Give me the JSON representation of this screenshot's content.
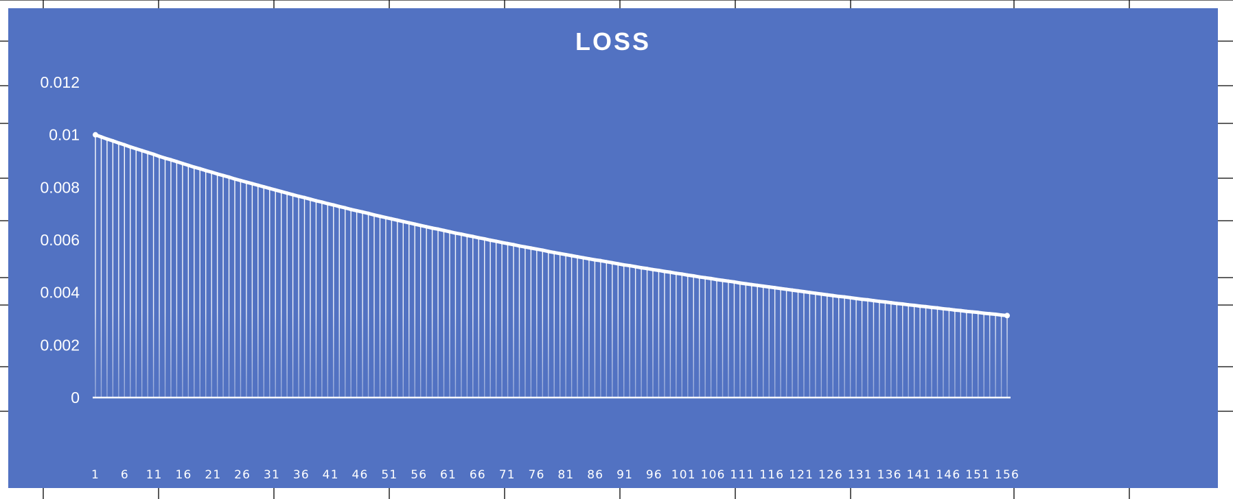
{
  "colors": {
    "background": "#ffffff",
    "gridline": "#000000",
    "chart_fill": "#5272c2",
    "series": "#ffffff"
  },
  "chart_data": {
    "type": "line",
    "title": "LOSS",
    "xlabel": "",
    "ylabel": "",
    "x_tick_labels": [
      "1",
      "6",
      "11",
      "16",
      "21",
      "26",
      "31",
      "36",
      "41",
      "46",
      "51",
      "56",
      "61",
      "66",
      "71",
      "76",
      "81",
      "86",
      "91",
      "96",
      "101",
      "106",
      "111",
      "116",
      "121",
      "126",
      "131",
      "136",
      "141",
      "146",
      "151",
      "156"
    ],
    "y_tick_labels": [
      "0",
      "0.002",
      "0.004",
      "0.006",
      "0.008",
      "0.01",
      "0.012"
    ],
    "ylim": [
      0,
      0.012
    ],
    "x_range": [
      1,
      156
    ],
    "grid": false,
    "legend": "none",
    "drop_lines": true,
    "series": [
      {
        "values": [
          0.01,
          0.00992,
          0.00984,
          0.00977,
          0.00969,
          0.00962,
          0.00954,
          0.00947,
          0.0094,
          0.00933,
          0.00926,
          0.00918,
          0.00911,
          0.00905,
          0.00898,
          0.00891,
          0.00884,
          0.00877,
          0.00871,
          0.00864,
          0.00858,
          0.00851,
          0.00845,
          0.00839,
          0.00832,
          0.00826,
          0.0082,
          0.00814,
          0.00808,
          0.00802,
          0.00796,
          0.0079,
          0.00784,
          0.00778,
          0.00772,
          0.00766,
          0.00761,
          0.00755,
          0.00749,
          0.00744,
          0.00738,
          0.00733,
          0.00727,
          0.00722,
          0.00716,
          0.00711,
          0.00706,
          0.00701,
          0.00695,
          0.0069,
          0.00685,
          0.0068,
          0.00675,
          0.0067,
          0.00665,
          0.0066,
          0.00655,
          0.0065,
          0.00645,
          0.00641,
          0.00636,
          0.00631,
          0.00626,
          0.00622,
          0.00617,
          0.00613,
          0.00608,
          0.00604,
          0.00599,
          0.00595,
          0.0059,
          0.00586,
          0.00582,
          0.00577,
          0.00573,
          0.00569,
          0.00565,
          0.00561,
          0.00556,
          0.00552,
          0.00548,
          0.00544,
          0.0054,
          0.00536,
          0.00532,
          0.00528,
          0.00524,
          0.00521,
          0.00517,
          0.00513,
          0.00509,
          0.00505,
          0.00502,
          0.00498,
          0.00494,
          0.00491,
          0.00487,
          0.00484,
          0.0048,
          0.00477,
          0.00473,
          0.0047,
          0.00466,
          0.00463,
          0.00459,
          0.00456,
          0.00453,
          0.00449,
          0.00446,
          0.00443,
          0.0044,
          0.00436,
          0.00433,
          0.0043,
          0.00427,
          0.00424,
          0.00421,
          0.00418,
          0.00415,
          0.00412,
          0.00409,
          0.00406,
          0.00403,
          0.004,
          0.00397,
          0.00394,
          0.00391,
          0.00388,
          0.00385,
          0.00383,
          0.0038,
          0.00377,
          0.00374,
          0.00372,
          0.00369,
          0.00366,
          0.00364,
          0.00361,
          0.00358,
          0.00356,
          0.00353,
          0.00351,
          0.00348,
          0.00346,
          0.00343,
          0.00341,
          0.00338,
          0.00336,
          0.00333,
          0.00331,
          0.00328,
          0.00326,
          0.00324,
          0.00321,
          0.00319,
          0.00317,
          0.00314,
          0.00312
        ]
      }
    ]
  }
}
